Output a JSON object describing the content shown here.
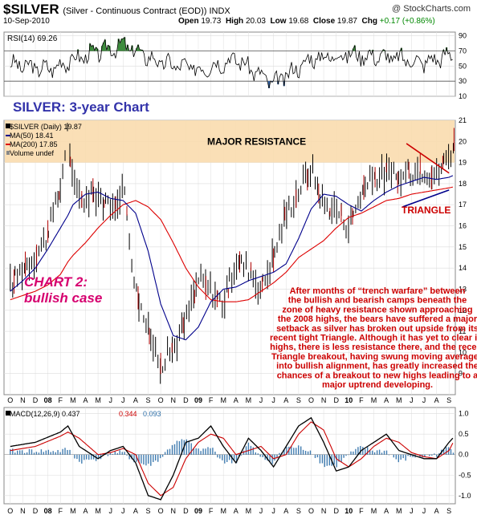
{
  "header": {
    "symbol": "$SILVER",
    "description": "(Silver - Continuous Contract (EOD)) INDX",
    "watermark": "@ StockCharts.com",
    "date": "10-Sep-2010",
    "open_label": "Open",
    "open": "19.73",
    "high_label": "High",
    "high": "20.03",
    "low_label": "Low",
    "low": "19.68",
    "close_label": "Close",
    "close": "19.87",
    "chg_label": "Chg",
    "chg": "+0.17 (+0.86%)",
    "chg_color": "#008800"
  },
  "colors": {
    "price": "#000000",
    "ma50": "#00008b",
    "ma200": "#dd0000",
    "resistance": "#f9dcae",
    "annotation": "#cc0000",
    "macd_hist": "#2e6fa8",
    "rsi_over": "#3d8c3d",
    "rsi_under": "#3366aa",
    "title_blue": "#3333aa",
    "magenta": "#d6006f"
  },
  "chart_data": [
    {
      "type": "line",
      "title": "RSI(14) 69.26",
      "indicator": "RSI",
      "period": 14,
      "last": 69.26,
      "ylim": [
        10,
        95
      ],
      "yticks": [
        10,
        30,
        50,
        70,
        90
      ],
      "tick_labels": [
        "10",
        "30",
        "50",
        "70",
        "90"
      ],
      "levels": [
        30,
        70
      ],
      "x": [
        0,
        3,
        6,
        9,
        12,
        15,
        18,
        21,
        24,
        27,
        30,
        33,
        36
      ],
      "values": [
        52,
        46,
        64,
        78,
        54,
        46,
        60,
        26,
        60,
        66,
        62,
        55,
        69.26
      ]
    },
    {
      "type": "line",
      "legend": [
        "$SILVER (Daily) 19.87",
        "MA(50) 18.41",
        "MA(200) 17.85",
        "Volume undef"
      ],
      "ylim": [
        8,
        21
      ],
      "yticks": [
        9,
        10,
        11,
        12,
        13,
        14,
        15,
        16,
        17,
        18,
        19,
        20,
        21
      ],
      "tick_labels": [
        "9",
        "10",
        "11",
        "12",
        "13",
        "14",
        "15",
        "16",
        "17",
        "18",
        "19",
        "20",
        "21"
      ],
      "x_months": [
        "O",
        "N",
        "D",
        "08",
        "F",
        "M",
        "A",
        "M",
        "J",
        "J",
        "A",
        "S",
        "O",
        "N",
        "D",
        "09",
        "F",
        "M",
        "A",
        "M",
        "J",
        "J",
        "A",
        "S",
        "O",
        "N",
        "D",
        "10",
        "F",
        "M",
        "A",
        "M",
        "J",
        "J",
        "A",
        "S"
      ],
      "x": [
        0,
        1,
        2,
        3,
        4,
        4.6,
        5,
        6,
        7,
        8,
        9,
        10,
        11,
        12,
        13,
        14,
        15,
        16,
        17,
        18,
        19,
        20,
        21,
        22,
        23,
        24,
        25,
        26,
        27,
        28,
        29,
        30,
        31,
        32,
        33,
        34,
        35,
        35.4
      ],
      "series": [
        {
          "name": "$SILVER (Daily) 19.87",
          "values": [
            13.2,
            14.0,
            14.6,
            15.6,
            17.8,
            20.7,
            17.8,
            17.2,
            17.6,
            16.6,
            18.0,
            13.0,
            11.0,
            9.5,
            10.2,
            11.5,
            13.5,
            13.0,
            12.3,
            14.3,
            14.0,
            13.0,
            14.6,
            16.6,
            17.7,
            18.8,
            17.0,
            16.8,
            16.0,
            17.6,
            18.3,
            18.5,
            18.2,
            18.6,
            18.7,
            18.4,
            19.4,
            19.87
          ]
        },
        {
          "name": "MA(50) 18.41",
          "values": [
            12.9,
            13.4,
            14.0,
            14.9,
            15.9,
            16.5,
            17.0,
            17.5,
            17.6,
            17.3,
            17.2,
            16.6,
            14.8,
            12.3,
            10.8,
            10.6,
            11.2,
            12.4,
            13.0,
            13.1,
            13.4,
            13.6,
            13.8,
            14.2,
            15.4,
            16.8,
            17.5,
            17.4,
            17.0,
            16.7,
            17.2,
            17.6,
            17.9,
            18.1,
            18.3,
            18.2,
            18.3,
            18.41
          ]
        },
        {
          "name": "MA(200) 17.85",
          "values": [
            12.5,
            12.7,
            12.9,
            13.2,
            13.7,
            14.3,
            14.6,
            15.2,
            15.9,
            16.5,
            17.0,
            17.2,
            16.9,
            16.3,
            15.2,
            14.0,
            13.1,
            12.5,
            12.4,
            12.4,
            12.5,
            12.9,
            13.3,
            13.8,
            14.5,
            14.9,
            15.3,
            15.9,
            16.4,
            16.6,
            16.9,
            17.2,
            17.3,
            17.5,
            17.6,
            17.7,
            17.8,
            17.85
          ]
        }
      ],
      "band": {
        "label": "MAJOR RESISTANCE",
        "from": 19.0,
        "to": 21.0
      },
      "triangle_label": "TRIANGLE",
      "triangle_upper": [
        [
          31.6,
          19.9
        ],
        [
          35.0,
          18.5
        ]
      ],
      "triangle_lower": [
        [
          31.3,
          16.9
        ],
        [
          35.0,
          17.7
        ]
      ]
    },
    {
      "type": "line",
      "title": "MACD(12,26,9)",
      "indicator": "MACD",
      "params": [
        12,
        26,
        9
      ],
      "legend": [
        "MACD(12,26,9) 0.437",
        "0.344",
        "0.093"
      ],
      "last": {
        "macd": 0.437,
        "signal": 0.344,
        "hist": 0.093
      },
      "ylim": [
        -1.2,
        1.15
      ],
      "yticks": [
        -1.0,
        -0.5,
        0.0,
        0.5,
        1.0
      ],
      "tick_labels": [
        "-1.0",
        "-0.5",
        "0.0",
        "0.5",
        "1.0"
      ],
      "x": [
        0,
        2,
        4,
        4.6,
        5.5,
        7,
        8,
        9,
        10,
        11,
        12,
        13,
        14,
        15,
        16,
        17,
        18,
        19,
        20,
        21,
        22,
        23,
        24,
        25,
        26,
        27,
        28,
        29,
        30,
        31,
        32,
        33,
        34,
        35,
        35.4
      ],
      "series": [
        {
          "name": "MACD",
          "values": [
            0.2,
            0.3,
            0.55,
            0.7,
            0.2,
            -0.1,
            0.1,
            0.2,
            -0.2,
            -1.0,
            -1.1,
            -0.5,
            0.3,
            0.4,
            0.7,
            0.2,
            -0.2,
            0.4,
            0.1,
            -0.3,
            0.2,
            0.7,
            0.9,
            0.3,
            -0.4,
            -0.3,
            0.1,
            0.3,
            0.5,
            0.1,
            0.0,
            -0.1,
            -0.1,
            0.3,
            0.437
          ]
        },
        {
          "name": "Signal",
          "values": [
            0.1,
            0.2,
            0.45,
            0.55,
            0.4,
            0.0,
            0.05,
            0.15,
            0.0,
            -0.7,
            -1.0,
            -0.8,
            -0.1,
            0.3,
            0.5,
            0.4,
            0.0,
            0.1,
            0.2,
            -0.1,
            0.0,
            0.5,
            0.8,
            0.6,
            -0.1,
            -0.3,
            -0.1,
            0.2,
            0.4,
            0.3,
            0.05,
            -0.05,
            -0.1,
            0.1,
            0.344
          ]
        }
      ]
    }
  ],
  "overlay": {
    "chart_title": "SILVER: 3-year Chart",
    "subtitle_line1": "CHART 2:",
    "subtitle_line2": "bullish case",
    "commentary": [
      "After months of “trench warfare” between",
      "the bullish and bearish camps beneath the",
      "zone of heavy resistance shown approaching",
      "the 2008 highs, the bears have suffered a major",
      "setback as silver has broken out upside from its",
      "recent tight Triangle. Although it has yet to clear its",
      "highs, there is less resistance there, and the recent",
      "Triangle breakout, having swung moving averages",
      "into bullish alignment, has greatly increased the",
      "chances of a breakout to new highs leading to a",
      "major uptrend developing."
    ]
  }
}
